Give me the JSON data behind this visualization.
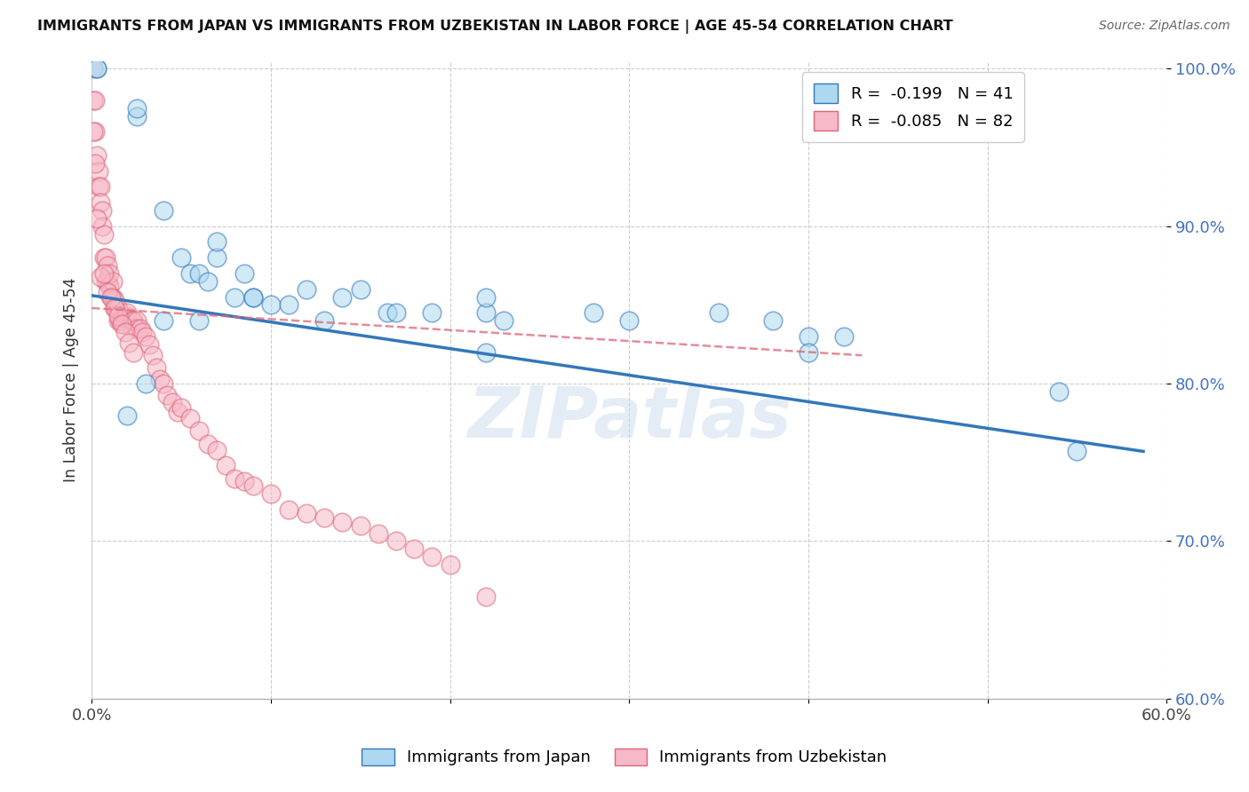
{
  "title": "IMMIGRANTS FROM JAPAN VS IMMIGRANTS FROM UZBEKISTAN IN LABOR FORCE | AGE 45-54 CORRELATION CHART",
  "source": "Source: ZipAtlas.com",
  "ylabel": "In Labor Force | Age 45-54",
  "legend_japan": "Immigrants from Japan",
  "legend_uzbekistan": "Immigrants from Uzbekistan",
  "r_japan": -0.199,
  "n_japan": 41,
  "r_uzbekistan": -0.085,
  "n_uzbekistan": 82,
  "xmin": 0.0,
  "xmax": 0.6,
  "ymin": 0.6,
  "ymax": 1.005,
  "yticks": [
    0.6,
    0.7,
    0.8,
    0.9,
    1.0
  ],
  "ytick_labels": [
    "60.0%",
    "70.0%",
    "80.0%",
    "90.0%",
    "100.0%"
  ],
  "xticks": [
    0.0,
    0.1,
    0.2,
    0.3,
    0.4,
    0.5,
    0.6
  ],
  "xtick_labels": [
    "0.0%",
    "",
    "",
    "",
    "",
    "",
    "60.0%"
  ],
  "color_japan": "#ADD8F0",
  "color_uzbekistan": "#F7B8C8",
  "trendline_japan_color": "#3377BB",
  "trendline_uzbekistan_color": "#DD6677",
  "watermark": "ZIPatlas",
  "japan_points_x": [
    0.003,
    0.003,
    0.025,
    0.025,
    0.04,
    0.05,
    0.055,
    0.06,
    0.065,
    0.07,
    0.08,
    0.085,
    0.09,
    0.1,
    0.11,
    0.12,
    0.13,
    0.14,
    0.15,
    0.165,
    0.17,
    0.19,
    0.22,
    0.22,
    0.22,
    0.23,
    0.28,
    0.3,
    0.35,
    0.38,
    0.4,
    0.4,
    0.42,
    0.54,
    0.55,
    0.02,
    0.03,
    0.04,
    0.06,
    0.07,
    0.09
  ],
  "japan_points_y": [
    1.0,
    1.0,
    0.97,
    0.975,
    0.91,
    0.88,
    0.87,
    0.87,
    0.865,
    0.88,
    0.855,
    0.87,
    0.855,
    0.85,
    0.85,
    0.86,
    0.84,
    0.855,
    0.86,
    0.845,
    0.845,
    0.845,
    0.845,
    0.82,
    0.855,
    0.84,
    0.845,
    0.84,
    0.845,
    0.84,
    0.83,
    0.82,
    0.83,
    0.795,
    0.757,
    0.78,
    0.8,
    0.84,
    0.84,
    0.89,
    0.855
  ],
  "japan_trendline_x": [
    0.0,
    0.587
  ],
  "japan_trendline_y": [
    0.856,
    0.757
  ],
  "uzbekistan_trendline_x": [
    0.0,
    0.43
  ],
  "uzbekistan_trendline_y": [
    0.848,
    0.818
  ],
  "uzbekistan_points_x": [
    0.001,
    0.001,
    0.002,
    0.002,
    0.003,
    0.004,
    0.004,
    0.005,
    0.005,
    0.006,
    0.006,
    0.007,
    0.007,
    0.008,
    0.008,
    0.009,
    0.009,
    0.01,
    0.01,
    0.011,
    0.012,
    0.012,
    0.013,
    0.013,
    0.014,
    0.015,
    0.015,
    0.016,
    0.017,
    0.018,
    0.019,
    0.02,
    0.02,
    0.022,
    0.023,
    0.025,
    0.025,
    0.027,
    0.028,
    0.03,
    0.032,
    0.034,
    0.036,
    0.038,
    0.04,
    0.042,
    0.045,
    0.048,
    0.05,
    0.055,
    0.06,
    0.065,
    0.07,
    0.075,
    0.08,
    0.085,
    0.09,
    0.1,
    0.11,
    0.12,
    0.13,
    0.14,
    0.15,
    0.16,
    0.17,
    0.18,
    0.19,
    0.2,
    0.22,
    0.001,
    0.002,
    0.003,
    0.005,
    0.007,
    0.009,
    0.011,
    0.013,
    0.015,
    0.017,
    0.019,
    0.021,
    0.023
  ],
  "uzbekistan_points_y": [
    1.0,
    0.98,
    0.96,
    0.98,
    0.945,
    0.935,
    0.925,
    0.925,
    0.915,
    0.91,
    0.9,
    0.895,
    0.88,
    0.88,
    0.865,
    0.865,
    0.875,
    0.862,
    0.87,
    0.855,
    0.855,
    0.865,
    0.853,
    0.848,
    0.848,
    0.848,
    0.84,
    0.84,
    0.84,
    0.838,
    0.842,
    0.843,
    0.845,
    0.84,
    0.84,
    0.84,
    0.835,
    0.835,
    0.833,
    0.83,
    0.825,
    0.818,
    0.81,
    0.803,
    0.8,
    0.793,
    0.788,
    0.782,
    0.785,
    0.778,
    0.77,
    0.762,
    0.758,
    0.748,
    0.74,
    0.738,
    0.735,
    0.73,
    0.72,
    0.718,
    0.715,
    0.712,
    0.71,
    0.705,
    0.7,
    0.695,
    0.69,
    0.685,
    0.665,
    0.96,
    0.94,
    0.905,
    0.868,
    0.87,
    0.858,
    0.855,
    0.848,
    0.843,
    0.838,
    0.833,
    0.826,
    0.82
  ]
}
